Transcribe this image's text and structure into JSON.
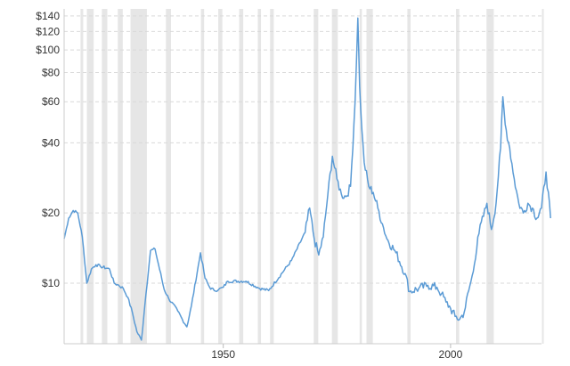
{
  "chart_data": {
    "type": "line",
    "title": "",
    "xlabel": "",
    "ylabel": "",
    "y_scale": "log",
    "xlim": [
      1915,
      2020
    ],
    "ylim": [
      5.5,
      150
    ],
    "grid": "horizontal dashed",
    "x_ticks": [
      1950,
      2000
    ],
    "x_tick_labels": [
      "1950",
      "2000"
    ],
    "y_ticks": [
      10,
      20,
      40,
      60,
      80,
      100,
      120,
      140
    ],
    "y_tick_labels": [
      "$10",
      "$20",
      "$40",
      "$60",
      "$80",
      "$100",
      "$120",
      "$140"
    ],
    "recession_bands": [
      [
        1918.6,
        1919.2
      ],
      [
        1920.0,
        1921.5
      ],
      [
        1923.3,
        1924.5
      ],
      [
        1926.8,
        1927.9
      ],
      [
        1929.6,
        1933.2
      ],
      [
        1937.4,
        1938.5
      ],
      [
        1945.1,
        1945.8
      ],
      [
        1948.9,
        1949.8
      ],
      [
        1953.5,
        1954.4
      ],
      [
        1957.6,
        1958.3
      ],
      [
        1960.3,
        1961.1
      ],
      [
        1969.9,
        1970.9
      ],
      [
        1973.9,
        1975.2
      ],
      [
        1980.0,
        1980.5
      ],
      [
        1981.5,
        1982.9
      ],
      [
        1990.5,
        1991.2
      ],
      [
        2001.2,
        2001.9
      ],
      [
        2007.9,
        2009.5
      ],
      [
        2020.1,
        2020.4
      ]
    ],
    "series": [
      {
        "color": "#5b9bd5",
        "x": [
          1915,
          1916,
          1917,
          1918,
          1919,
          1920,
          1921,
          1922,
          1923,
          1925,
          1926,
          1927,
          1928,
          1929,
          1930,
          1931,
          1932,
          1933,
          1934,
          1935,
          1937,
          1938,
          1940,
          1941,
          1942,
          1943,
          1945,
          1946,
          1947,
          1948,
          1949,
          1950,
          1951,
          1955,
          1958,
          1960,
          1965,
          1968,
          1969,
          1970,
          1971,
          1972,
          1973,
          1974,
          1975,
          1976,
          1977,
          1978,
          1979,
          1979.6,
          1980,
          1980.5,
          1981,
          1982,
          1983,
          1984,
          1985,
          1986,
          1988,
          1990,
          1991,
          1993,
          1995,
          1997,
          1998,
          1999,
          2000,
          2001,
          2002,
          2003,
          2004,
          2005,
          2006,
          2008,
          2009,
          2010,
          2011,
          2011.5,
          2012,
          2013,
          2014,
          2015,
          2016,
          2017,
          2018,
          2019,
          2020,
          2021,
          2022
        ],
        "y": [
          15.5,
          19,
          20.5,
          20,
          15.8,
          10,
          11.5,
          12,
          11.8,
          11.5,
          10,
          9.8,
          9.5,
          8.7,
          7.5,
          6.2,
          5.7,
          9,
          13.8,
          14,
          9.4,
          8.6,
          7.6,
          7.0,
          6.5,
          8,
          13.5,
          10.5,
          9.6,
          9.3,
          9.4,
          9.6,
          10.2,
          10.2,
          9.5,
          9.3,
          12.5,
          16.5,
          21,
          15.5,
          13.2,
          15.8,
          24,
          35,
          28,
          24,
          23.5,
          26,
          60,
          137,
          70,
          45,
          33,
          26,
          24.5,
          21,
          18,
          15.5,
          13.5,
          11,
          9.2,
          9.5,
          9.8,
          9.6,
          9.0,
          8.3,
          7.8,
          7.2,
          7.0,
          7.5,
          9.3,
          11.2,
          15.8,
          22,
          17,
          22,
          38,
          63,
          48,
          38,
          28,
          22,
          20,
          22,
          21,
          19,
          21,
          30,
          19
        ]
      }
    ]
  }
}
